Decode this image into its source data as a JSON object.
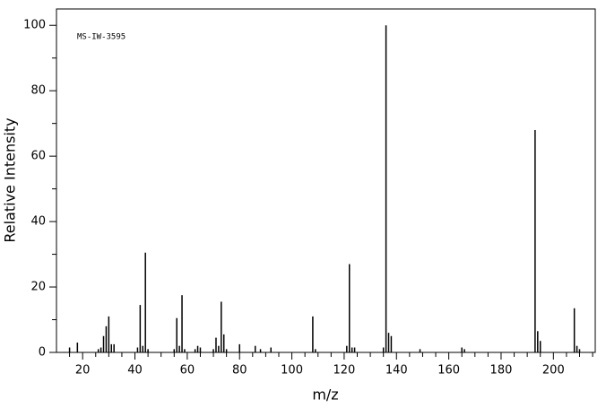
{
  "chart_data": {
    "type": "stem",
    "annotation": "MS-IW-3595",
    "xlabel": "m/z",
    "ylabel": "Relative Intensity",
    "color": "#000000",
    "x": [
      15,
      18,
      26,
      27,
      28,
      29,
      30,
      31,
      32,
      41,
      42,
      43,
      44,
      45,
      55,
      56,
      57,
      58,
      59,
      63,
      64,
      65,
      70,
      71,
      72,
      73,
      74,
      75,
      80,
      86,
      88,
      92,
      108,
      109,
      121,
      122,
      123,
      124,
      135,
      136,
      137,
      138,
      149,
      165,
      166,
      193,
      194,
      195,
      208,
      209,
      210
    ],
    "values": [
      1.5,
      3,
      1,
      1.5,
      5,
      8,
      11,
      2.5,
      2.5,
      1.5,
      14.5,
      2,
      30.5,
      1,
      1,
      10.5,
      2,
      17.5,
      1,
      1,
      2,
      1.5,
      1,
      4.5,
      2,
      15.5,
      5.5,
      1,
      2.5,
      2,
      1,
      1.5,
      11,
      1,
      2,
      27,
      1.5,
      1.5,
      1.5,
      100,
      6,
      5,
      1,
      1.5,
      1,
      68,
      6.5,
      3.5,
      13.5,
      2,
      1
    ],
    "xlim": [
      10,
      216
    ],
    "ylim": [
      0,
      105
    ],
    "xticks": [
      20,
      40,
      60,
      80,
      100,
      120,
      140,
      160,
      180,
      200
    ],
    "xminorticks": [
      15,
      25,
      30,
      35,
      45,
      50,
      55,
      65,
      70,
      75,
      85,
      90,
      95,
      105,
      110,
      115,
      125,
      130,
      135,
      145,
      150,
      155,
      165,
      170,
      175,
      185,
      190,
      195,
      205,
      210,
      215
    ],
    "yticks": [
      0,
      20,
      40,
      60,
      80,
      100
    ],
    "yminorticks": [
      10,
      30,
      50,
      70,
      90
    ]
  }
}
